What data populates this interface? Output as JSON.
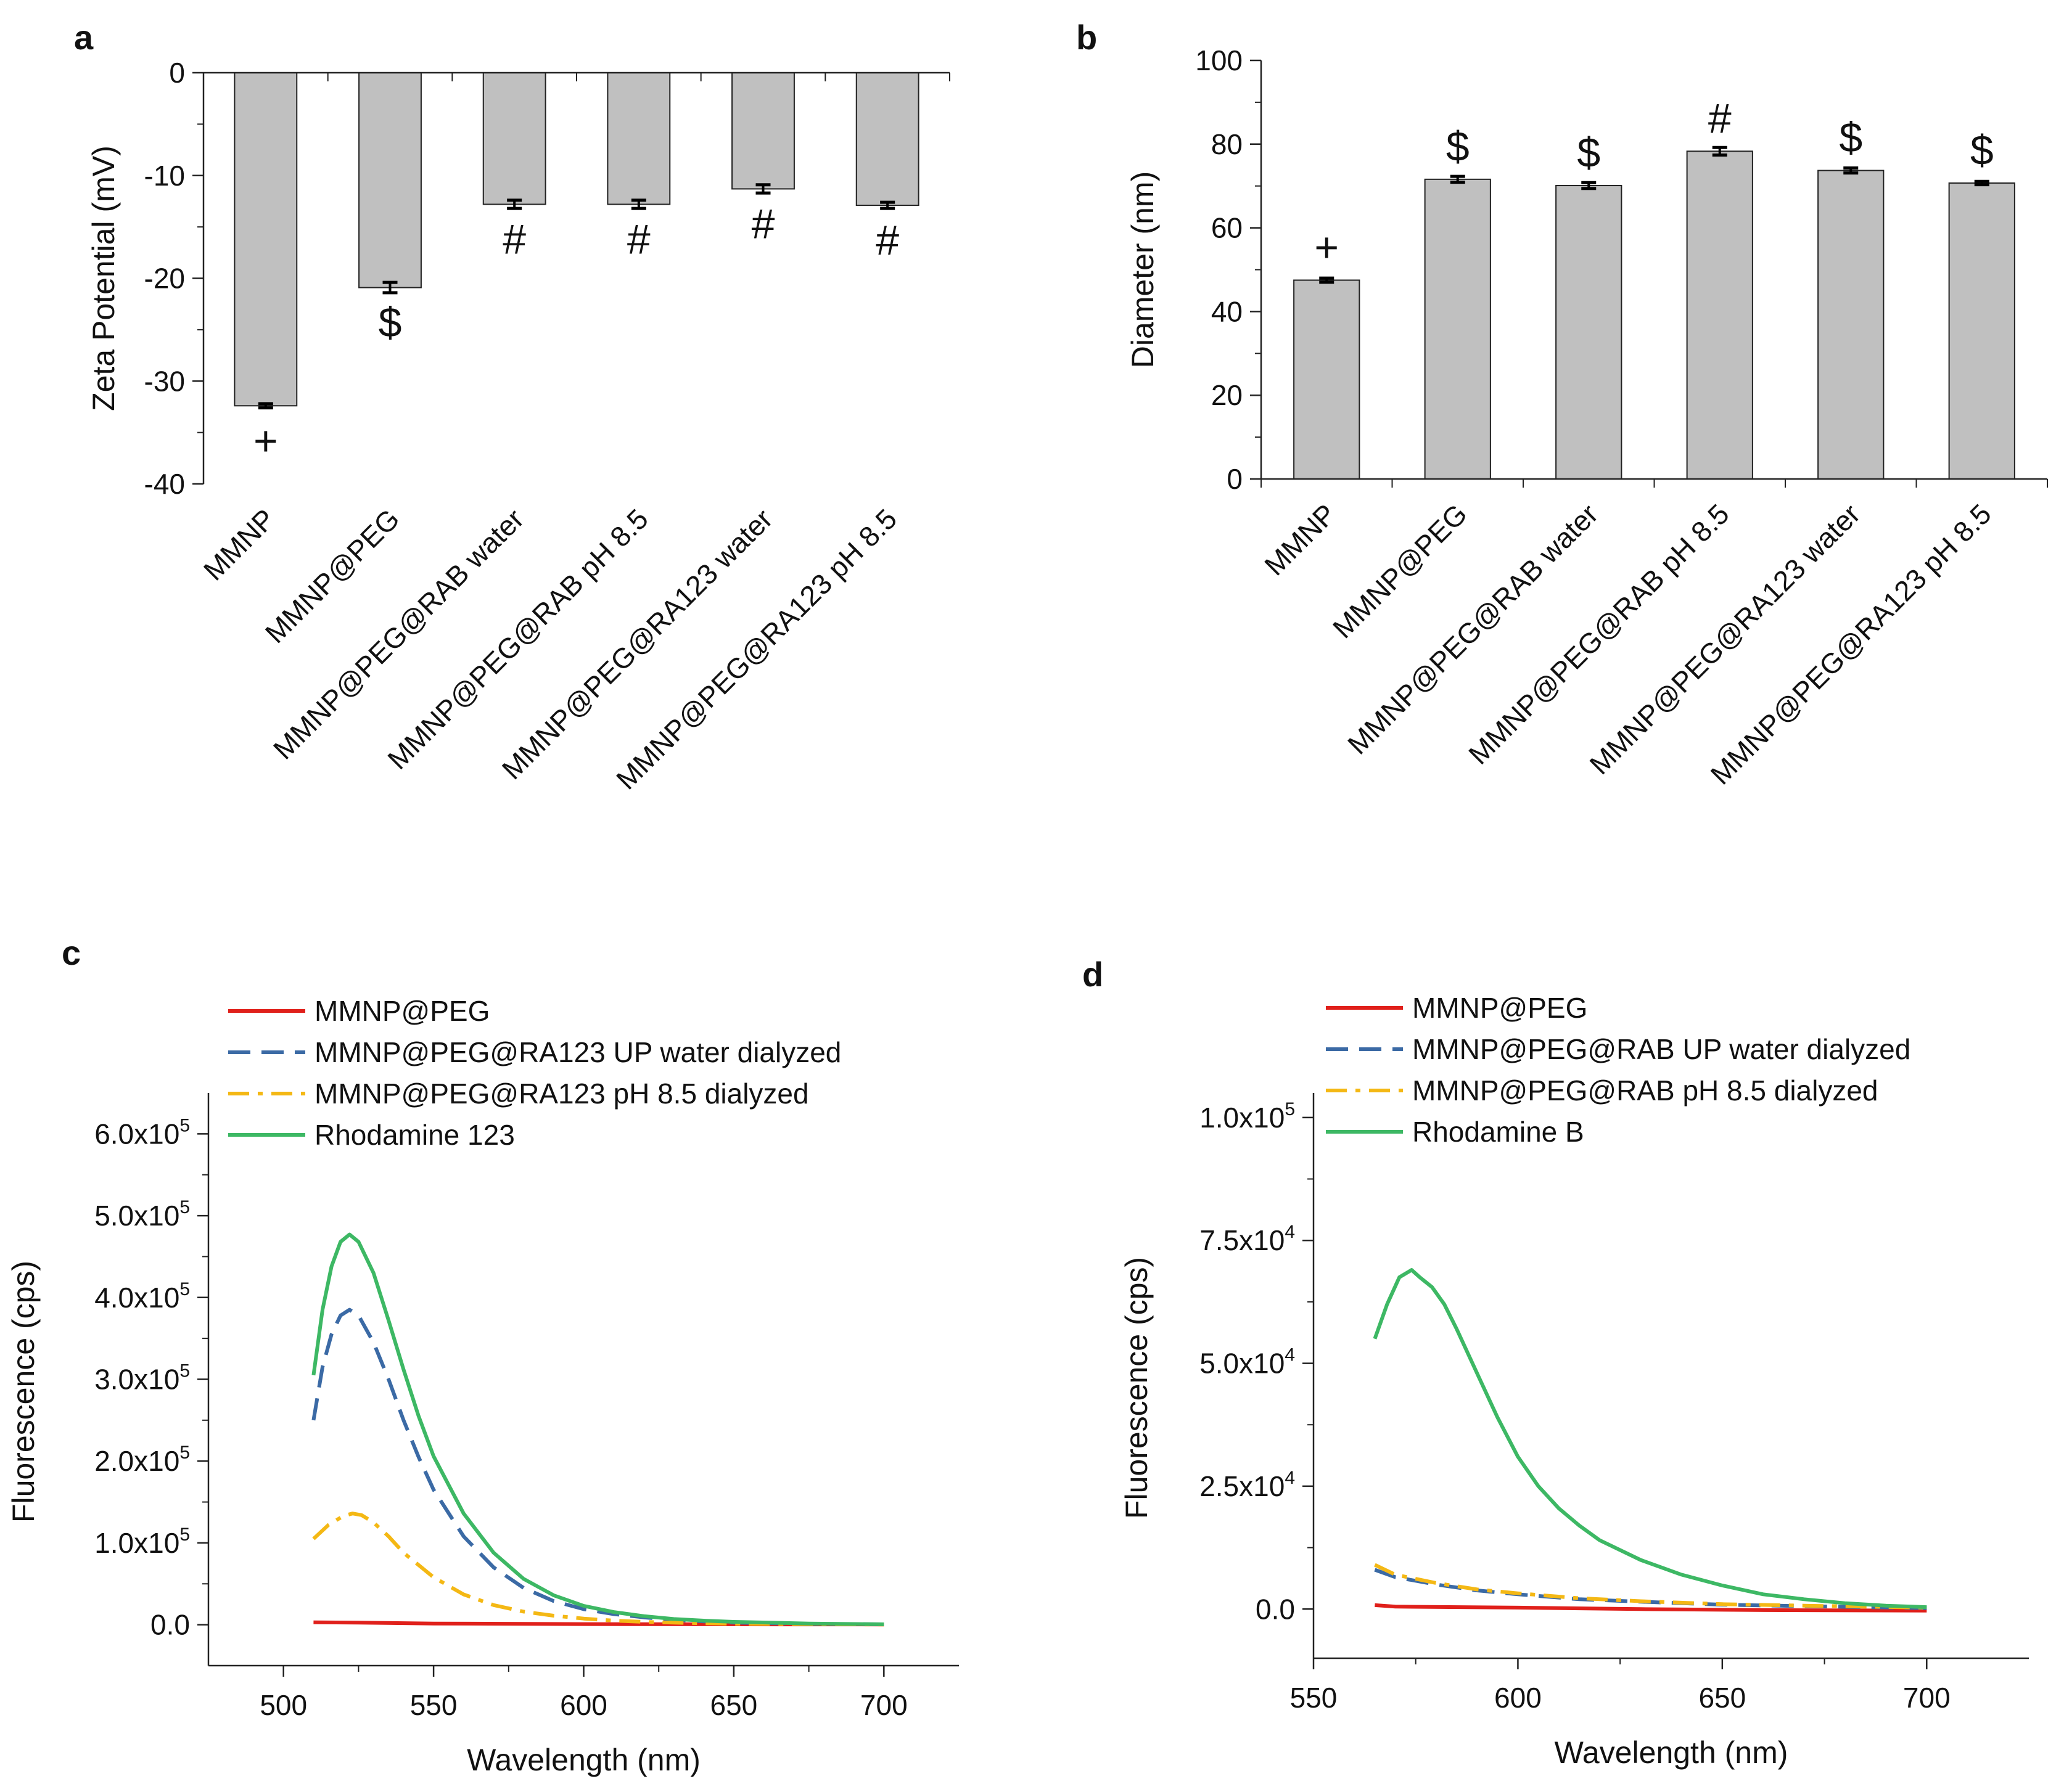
{
  "panels": [
    "a",
    "b",
    "c",
    "d"
  ],
  "chart_data": [
    {
      "panel": "a",
      "type": "bar",
      "ylabel": "Zeta Potential (mV)",
      "xlabel": "",
      "ylim": [
        -40,
        0
      ],
      "yticks": [
        0,
        -10,
        -20,
        -30,
        -40
      ],
      "categories": [
        "MMNP",
        "MMNP@PEG",
        "MMNP@PEG@RAB water",
        "MMNP@PEG@RAB pH 8.5",
        "MMNP@PEG@RA123 water",
        "MMNP@PEG@RA123 pH 8.5"
      ],
      "values": [
        -32.4,
        -20.9,
        -12.8,
        -12.8,
        -11.3,
        -12.9
      ],
      "errors": [
        0.2,
        0.5,
        0.4,
        0.4,
        0.4,
        0.3
      ],
      "markers": [
        "+",
        "$",
        "#",
        "#",
        "#",
        "#"
      ],
      "bar_color": "#c0c0c0"
    },
    {
      "panel": "b",
      "type": "bar",
      "ylabel": "Diameter (nm)",
      "xlabel": "",
      "ylim": [
        0,
        100
      ],
      "yticks": [
        0,
        20,
        40,
        60,
        80,
        100
      ],
      "categories": [
        "MMNP",
        "MMNP@PEG",
        "MMNP@PEG@RAB water",
        "MMNP@PEG@RAB pH 8.5",
        "MMNP@PEG@RA123 water",
        "MMNP@PEG@RA123 pH 8.5"
      ],
      "values": [
        47.5,
        71.6,
        70.1,
        78.3,
        73.7,
        70.7
      ],
      "errors": [
        0.5,
        0.7,
        0.7,
        0.9,
        0.6,
        0.4
      ],
      "markers": [
        "+",
        "$",
        "$",
        "#",
        "$",
        "$"
      ],
      "bar_color": "#c0c0c0"
    },
    {
      "panel": "c",
      "type": "line",
      "xlabel": "Wavelength (nm)",
      "ylabel": "Fluorescence (cps)",
      "xlim": [
        475,
        725
      ],
      "ylim": [
        -50000,
        650000
      ],
      "xticks": [
        "500",
        "550",
        "600",
        "650",
        "700"
      ],
      "yticks": [
        {
          "value": 0,
          "label": "0.0"
        },
        {
          "value": 100000,
          "label": "1.0x10",
          "exp": "5"
        },
        {
          "value": 200000,
          "label": "2.0x10",
          "exp": "5"
        },
        {
          "value": 300000,
          "label": "3.0x10",
          "exp": "5"
        },
        {
          "value": 400000,
          "label": "4.0x10",
          "exp": "5"
        },
        {
          "value": 500000,
          "label": "5.0x10",
          "exp": "5"
        },
        {
          "value": 600000,
          "label": "6.0x10",
          "exp": "5"
        }
      ],
      "legend_position": "top-left",
      "series": [
        {
          "name": "MMNP@PEG",
          "color": "#e0201b",
          "style": "solid",
          "x": [
            510,
            525,
            550,
            600,
            650,
            700
          ],
          "y": [
            3000,
            2500,
            1500,
            800,
            500,
            300
          ]
        },
        {
          "name": "MMNP@PEG@RA123 UP water dialyzed",
          "color": "#3b6aa5",
          "style": "dash",
          "x": [
            510,
            513,
            516,
            519,
            522,
            525,
            530,
            535,
            540,
            545,
            550,
            560,
            570,
            580,
            590,
            600,
            610,
            620,
            630,
            640,
            650,
            675,
            700
          ],
          "y": [
            250000,
            315000,
            355000,
            378000,
            385000,
            378000,
            345000,
            300000,
            250000,
            205000,
            165000,
            108000,
            70000,
            45000,
            29000,
            19000,
            13000,
            9000,
            6000,
            4000,
            2500,
            1200,
            500
          ]
        },
        {
          "name": "MMNP@PEG@RA123 pH 8.5 dialyzed",
          "color": "#f4b814",
          "style": "dashdot",
          "x": [
            510,
            515,
            520,
            523,
            526,
            530,
            535,
            540,
            550,
            560,
            570,
            580,
            590,
            600,
            610,
            620,
            630,
            650,
            675,
            700
          ],
          "y": [
            105000,
            122000,
            133000,
            136000,
            134000,
            125000,
            108000,
            88000,
            58000,
            37000,
            24000,
            16000,
            11000,
            7500,
            5000,
            3500,
            2500,
            1200,
            600,
            300
          ]
        },
        {
          "name": "Rhodamine 123",
          "color": "#3db864",
          "style": "solid",
          "x": [
            510,
            513,
            516,
            519,
            522,
            525,
            530,
            535,
            540,
            545,
            550,
            560,
            570,
            580,
            590,
            600,
            610,
            620,
            630,
            640,
            650,
            675,
            700
          ],
          "y": [
            305000,
            385000,
            438000,
            468000,
            477000,
            468000,
            430000,
            372000,
            312000,
            255000,
            206000,
            136000,
            88000,
            56000,
            36000,
            23000,
            15500,
            10500,
            7000,
            5000,
            3500,
            1500,
            500
          ]
        }
      ]
    },
    {
      "panel": "d",
      "type": "line",
      "xlabel": "Wavelength (nm)",
      "ylabel": "Fluorescence (cps)",
      "xlim": [
        550,
        725
      ],
      "ylim": [
        -10000,
        105000
      ],
      "xticks": [
        "550",
        "600",
        "650",
        "700"
      ],
      "yticks": [
        {
          "value": 0,
          "label": "0.0"
        },
        {
          "value": 25000,
          "label": "2.5x10",
          "exp": "4"
        },
        {
          "value": 50000,
          "label": "5.0x10",
          "exp": "4"
        },
        {
          "value": 75000,
          "label": "7.5x10",
          "exp": "4"
        },
        {
          "value": 100000,
          "label": "1.0x10",
          "exp": "5"
        }
      ],
      "legend_position": "top-left",
      "series": [
        {
          "name": "MMNP@PEG",
          "color": "#e0201b",
          "style": "solid",
          "x": [
            565,
            570,
            600,
            630,
            660,
            700
          ],
          "y": [
            800,
            500,
            300,
            0,
            -200,
            -300
          ]
        },
        {
          "name": "MMNP@PEG@RAB UP water dialyzed",
          "color": "#3b6aa5",
          "style": "dash",
          "x": [
            565,
            570,
            580,
            590,
            600,
            615,
            630,
            650,
            670,
            700
          ],
          "y": [
            8000,
            6500,
            5000,
            3800,
            3000,
            2000,
            1500,
            900,
            600,
            200
          ]
        },
        {
          "name": "MMNP@PEG@RAB pH 8.5 dialyzed",
          "color": "#f4b814",
          "style": "dashdot",
          "x": [
            565,
            570,
            580,
            590,
            600,
            615,
            630,
            650,
            670,
            700
          ],
          "y": [
            9000,
            7000,
            5300,
            4000,
            3200,
            2200,
            1600,
            1000,
            700,
            300
          ]
        },
        {
          "name": "Rhodamine B",
          "color": "#3db864",
          "style": "solid",
          "x": [
            565,
            568,
            571,
            574,
            576,
            579,
            582,
            585,
            590,
            595,
            600,
            605,
            610,
            615,
            620,
            630,
            640,
            650,
            660,
            670,
            680,
            690,
            700
          ],
          "y": [
            55000,
            62000,
            67500,
            69000,
            67500,
            65500,
            62000,
            57000,
            48000,
            39000,
            31000,
            25000,
            20500,
            17000,
            14000,
            10000,
            7000,
            4800,
            3000,
            2000,
            1200,
            700,
            400
          ]
        }
      ]
    }
  ]
}
